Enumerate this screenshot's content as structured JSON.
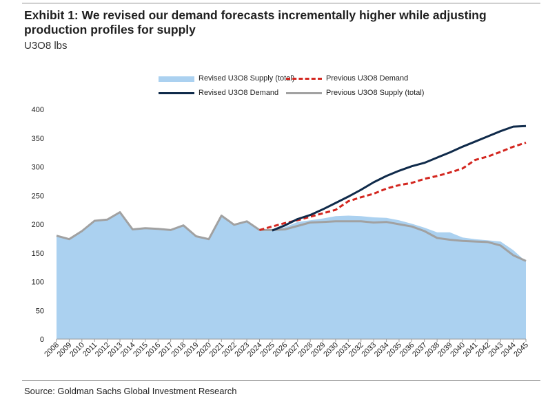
{
  "header": {
    "title": "Exhibit 1: We revised our demand forecasts incrementally higher while adjusting production profiles for supply",
    "subtitle": "U3O8 lbs"
  },
  "footer": {
    "source": "Source: Goldman Sachs Global Investment Research"
  },
  "legend": {
    "revised_supply": "Revised U3O8 Supply (total)",
    "previous_demand": "Previous U3O8 Demand",
    "revised_demand": "Revised U3O8 Demand",
    "previous_supply": "Previous U3O8 Supply (total)"
  },
  "colors": {
    "revised_supply": "#abd1f0",
    "previous_demand": "#d3261f",
    "revised_demand": "#0f2a4a",
    "previous_supply": "#a1a1a1",
    "axis": "#999999"
  },
  "chart_data": {
    "type": "area",
    "title": "Exhibit 1: We revised our demand forecasts incrementally higher while adjusting production profiles for supply",
    "ylabel": "U3O8 lbs",
    "ylim": [
      0,
      400
    ],
    "yticks": [
      0,
      50,
      100,
      150,
      200,
      250,
      300,
      350,
      400
    ],
    "grid": false,
    "legend_position": "top",
    "categories": [
      "2008",
      "2009",
      "2010",
      "2011",
      "2012",
      "2013",
      "2014",
      "2015",
      "2016",
      "2017",
      "2018",
      "2019",
      "2020",
      "2021",
      "2022",
      "2023",
      "2024",
      "2025",
      "2026",
      "2027",
      "2028",
      "2029",
      "2030",
      "2031",
      "2032",
      "2033",
      "2034",
      "2035",
      "2036",
      "2037",
      "2038",
      "2039",
      "2040",
      "2041",
      "2042",
      "2043",
      "2044",
      "2045"
    ],
    "series": [
      {
        "name": "Revised U3O8 Supply (total)",
        "kind": "area",
        "values": [
          180,
          174,
          188,
          206,
          208,
          221,
          191,
          192,
          191,
          190,
          198,
          179,
          174,
          215,
          199,
          205,
          190,
          188,
          195,
          204,
          207,
          210,
          214,
          215,
          214,
          212,
          211,
          207,
          201,
          194,
          186,
          186,
          177,
          174,
          172,
          170,
          155,
          135
        ]
      },
      {
        "name": "Previous U3O8 Demand",
        "kind": "dashed-line",
        "start_index": 16,
        "values": [
          null,
          null,
          null,
          null,
          null,
          null,
          null,
          null,
          null,
          null,
          null,
          null,
          null,
          null,
          null,
          null,
          190,
          196,
          202,
          207,
          213,
          219,
          225,
          240,
          247,
          253,
          262,
          268,
          272,
          279,
          284,
          290,
          297,
          312,
          318,
          326,
          335,
          342
        ]
      },
      {
        "name": "Revised U3O8 Demand",
        "kind": "line",
        "start_index": 17,
        "values": [
          null,
          null,
          null,
          null,
          null,
          null,
          null,
          null,
          null,
          null,
          null,
          null,
          null,
          null,
          null,
          null,
          null,
          189,
          198,
          209,
          216,
          226,
          237,
          248,
          260,
          273,
          284,
          293,
          301,
          307,
          316,
          325,
          335,
          344,
          353,
          362,
          370,
          371
        ]
      },
      {
        "name": "Previous U3O8 Supply (total)",
        "kind": "line",
        "values": [
          180,
          174,
          188,
          206,
          208,
          221,
          191,
          193,
          192,
          190,
          198,
          179,
          174,
          215,
          199,
          205,
          190,
          190,
          191,
          197,
          203,
          204,
          205,
          205,
          205,
          203,
          204,
          200,
          196,
          188,
          176,
          173,
          171,
          170,
          169,
          163,
          146,
          136
        ]
      }
    ]
  }
}
